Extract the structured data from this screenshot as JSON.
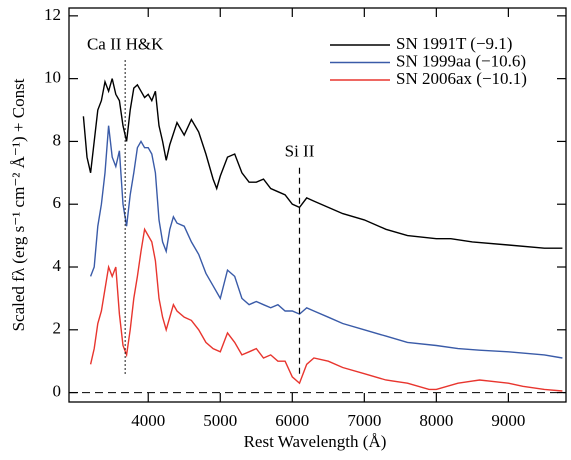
{
  "chart_data": {
    "type": "line",
    "xlabel": "Rest Wavelength (Å)",
    "ylabel": "Scaled fλ (erg s⁻¹ cm⁻² Å⁻¹) + Const",
    "xlim": [
      2900,
      9800
    ],
    "ylim": [
      -0.3,
      12.25
    ],
    "xticks": [
      4000,
      5000,
      6000,
      7000,
      8000,
      9000
    ],
    "yticks": [
      0,
      2,
      4,
      6,
      8,
      10,
      12
    ],
    "legend": "upper right",
    "reference_line_y": 0,
    "markers": [
      {
        "label": "Ca II H&K",
        "x": 3680,
        "y": [
          0.6,
          10.6
        ],
        "style": "dotted"
      },
      {
        "label": "Si II",
        "x": 6100,
        "y": [
          0.6,
          7.2
        ],
        "style": "dashed"
      }
    ],
    "series": [
      {
        "name": "SN 1991T (−9.1)",
        "color": "#000000",
        "x": [
          3100,
          3150,
          3200,
          3250,
          3300,
          3350,
          3400,
          3450,
          3500,
          3550,
          3600,
          3650,
          3700,
          3750,
          3800,
          3850,
          3900,
          3950,
          4000,
          4050,
          4100,
          4150,
          4200,
          4250,
          4300,
          4400,
          4500,
          4600,
          4700,
          4800,
          4900,
          4950,
          5000,
          5100,
          5200,
          5300,
          5400,
          5500,
          5600,
          5700,
          5800,
          5900,
          6000,
          6100,
          6200,
          6300,
          6500,
          6700,
          7000,
          7300,
          7600,
          8000,
          8200,
          8500,
          9000,
          9500,
          9750
        ],
        "values": [
          8.8,
          7.5,
          7.0,
          8.0,
          9.0,
          9.3,
          9.9,
          9.6,
          10.0,
          9.5,
          9.3,
          8.5,
          8.0,
          9.0,
          9.7,
          9.8,
          9.6,
          9.4,
          9.5,
          9.3,
          9.6,
          8.5,
          8.0,
          7.4,
          7.9,
          8.6,
          8.2,
          8.7,
          8.3,
          7.6,
          6.8,
          6.5,
          6.9,
          7.5,
          7.6,
          7.0,
          6.7,
          6.7,
          6.8,
          6.5,
          6.4,
          6.3,
          6.0,
          5.9,
          6.2,
          6.1,
          5.9,
          5.7,
          5.5,
          5.2,
          5.0,
          4.9,
          4.9,
          4.8,
          4.7,
          4.6,
          4.6
        ]
      },
      {
        "name": "SN 1999aa (−10.6)",
        "color": "#3a5ba8",
        "x": [
          3200,
          3250,
          3300,
          3350,
          3400,
          3450,
          3500,
          3550,
          3600,
          3650,
          3700,
          3750,
          3800,
          3850,
          3900,
          3950,
          4000,
          4050,
          4100,
          4150,
          4200,
          4250,
          4300,
          4350,
          4400,
          4500,
          4600,
          4700,
          4800,
          4900,
          5000,
          5100,
          5200,
          5300,
          5400,
          5500,
          5600,
          5700,
          5800,
          5900,
          6000,
          6100,
          6200,
          6300,
          6500,
          6700,
          7000,
          7300,
          7600,
          8000,
          8300,
          8600,
          9000,
          9500,
          9750
        ],
        "values": [
          3.7,
          4.0,
          5.3,
          6.0,
          7.0,
          8.5,
          7.5,
          7.2,
          7.7,
          6.0,
          5.3,
          6.3,
          7.0,
          7.8,
          8.0,
          7.8,
          7.8,
          7.6,
          7.0,
          5.5,
          4.8,
          4.5,
          5.2,
          5.6,
          5.4,
          5.3,
          4.8,
          4.4,
          3.8,
          3.4,
          3.0,
          3.9,
          3.7,
          3.0,
          2.8,
          2.9,
          2.8,
          2.7,
          2.8,
          2.6,
          2.6,
          2.5,
          2.7,
          2.6,
          2.4,
          2.2,
          2.0,
          1.8,
          1.6,
          1.5,
          1.4,
          1.35,
          1.3,
          1.2,
          1.1
        ]
      },
      {
        "name": "SN 2006ax (−10.1)",
        "color": "#e8352e",
        "x": [
          3200,
          3250,
          3300,
          3350,
          3400,
          3450,
          3500,
          3550,
          3600,
          3650,
          3700,
          3750,
          3800,
          3850,
          3900,
          3950,
          4000,
          4050,
          4100,
          4150,
          4200,
          4250,
          4300,
          4350,
          4400,
          4500,
          4600,
          4700,
          4800,
          4900,
          5000,
          5100,
          5200,
          5300,
          5400,
          5500,
          5600,
          5700,
          5800,
          5900,
          6000,
          6100,
          6200,
          6300,
          6500,
          6700,
          7000,
          7300,
          7600,
          7900,
          8000,
          8300,
          8600,
          9000,
          9200,
          9500,
          9750
        ],
        "values": [
          0.9,
          1.4,
          2.2,
          2.6,
          3.3,
          4.0,
          3.7,
          4.0,
          2.5,
          1.5,
          1.2,
          2.0,
          3.0,
          3.7,
          4.5,
          5.2,
          5.0,
          4.8,
          4.2,
          3.0,
          2.4,
          2.0,
          2.4,
          2.8,
          2.6,
          2.4,
          2.3,
          2.0,
          1.6,
          1.4,
          1.3,
          1.9,
          1.6,
          1.2,
          1.3,
          1.4,
          1.1,
          1.2,
          1.0,
          1.0,
          0.5,
          0.3,
          0.9,
          1.1,
          1.0,
          0.8,
          0.6,
          0.4,
          0.3,
          0.1,
          0.1,
          0.3,
          0.4,
          0.3,
          0.2,
          0.1,
          0.05
        ]
      }
    ]
  }
}
